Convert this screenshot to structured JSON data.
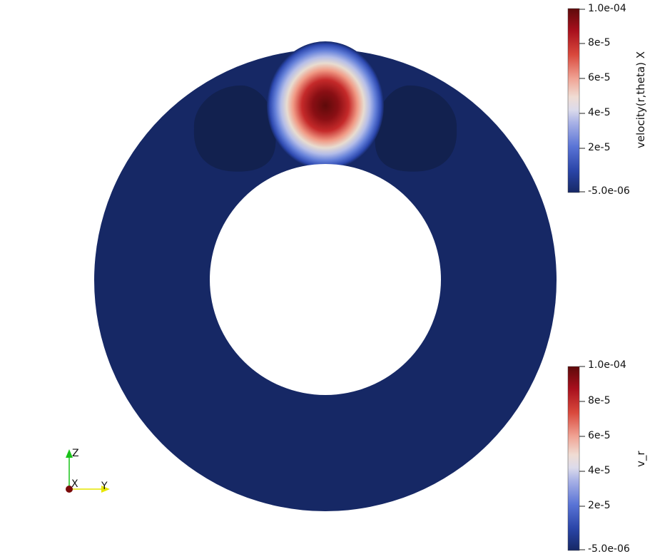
{
  "colorbars": [
    {
      "title": "velocity(r,theta) X",
      "min_label": "-5.0e-06",
      "max_label": "1.0e-04",
      "tick_labels": [
        "8e-5",
        "6e-5",
        "4e-5",
        "2e-5"
      ]
    },
    {
      "title": "v_r",
      "min_label": "-5.0e-06",
      "max_label": "1.0e-04",
      "tick_labels": [
        "8e-5",
        "6e-5",
        "4e-5",
        "2e-5"
      ]
    }
  ],
  "orientation_axes": {
    "z_label": "Z",
    "x_label": "X",
    "y_label": "Y",
    "z_color": "#19c219",
    "y_color": "#e6e600",
    "x_color": "#7a0a0a"
  },
  "colors": {
    "field_background": "#162865",
    "lobe_dark": "#12214f",
    "peak": "#5e0a0a"
  }
}
